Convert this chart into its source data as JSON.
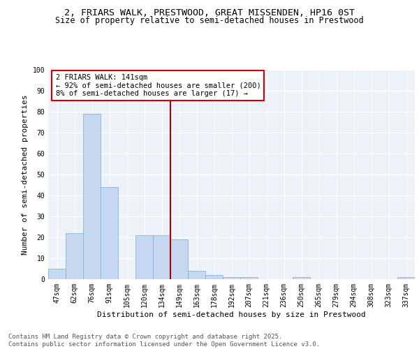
{
  "title_line1": "2, FRIARS WALK, PRESTWOOD, GREAT MISSENDEN, HP16 0ST",
  "title_line2": "Size of property relative to semi-detached houses in Prestwood",
  "categories": [
    "47sqm",
    "62sqm",
    "76sqm",
    "91sqm",
    "105sqm",
    "120sqm",
    "134sqm",
    "149sqm",
    "163sqm",
    "178sqm",
    "192sqm",
    "207sqm",
    "221sqm",
    "236sqm",
    "250sqm",
    "265sqm",
    "279sqm",
    "294sqm",
    "308sqm",
    "323sqm",
    "337sqm"
  ],
  "values": [
    5,
    22,
    79,
    44,
    0,
    21,
    21,
    19,
    4,
    2,
    1,
    1,
    0,
    0,
    1,
    0,
    0,
    0,
    0,
    0,
    1
  ],
  "bar_color": "#c5d8ef",
  "bar_edge_color": "#7aadd4",
  "vline_color": "#aa0000",
  "vline_pos": 7.0,
  "annotation_line1": "2 FRIARS WALK: 141sqm",
  "annotation_line2": "← 92% of semi-detached houses are smaller (200)",
  "annotation_line3": "8% of semi-detached houses are larger (17) →",
  "annotation_box_color": "#ffffff",
  "annotation_box_edge": "#cc0000",
  "xlabel": "Distribution of semi-detached houses by size in Prestwood",
  "ylabel": "Number of semi-detached properties",
  "ylim": [
    0,
    100
  ],
  "yticks": [
    0,
    10,
    20,
    30,
    40,
    50,
    60,
    70,
    80,
    90,
    100
  ],
  "footer_line1": "Contains HM Land Registry data © Crown copyright and database right 2025.",
  "footer_line2": "Contains public sector information licensed under the Open Government Licence v3.0.",
  "bg_color": "#edf2f9",
  "grid_color": "#ffffff",
  "title_fontsize": 9.5,
  "subtitle_fontsize": 8.5,
  "axis_fontsize": 8,
  "tick_fontsize": 7,
  "annotation_fontsize": 7.5,
  "footer_fontsize": 6.5
}
